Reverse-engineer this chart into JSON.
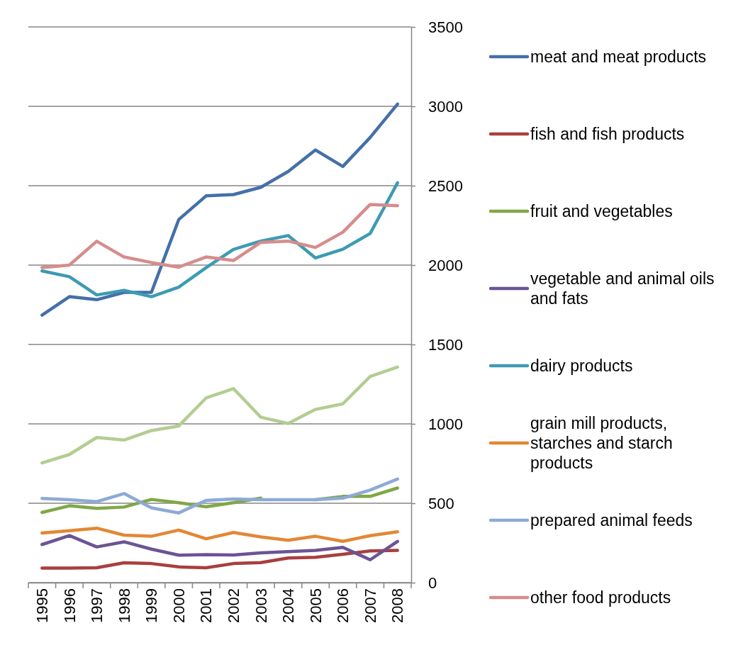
{
  "chart_data": {
    "type": "line",
    "categories": [
      "1995",
      "1996",
      "1997",
      "1998",
      "1999",
      "2000",
      "2001",
      "2002",
      "2003",
      "2004",
      "2005",
      "2006",
      "2007",
      "2008"
    ],
    "series": [
      {
        "name": "meat and meat products",
        "color": "#4470a8",
        "values": [
          1685,
          1801,
          1782,
          1828,
          1828,
          2287,
          2436,
          2444,
          2490,
          2589,
          2725,
          2621,
          2804,
          3014
        ]
      },
      {
        "name": "fish and fish products",
        "color": "#a83f3f",
        "values": [
          91,
          91,
          94,
          125,
          120,
          99,
          94,
          120,
          126,
          155,
          160,
          179,
          200,
          203
        ]
      },
      {
        "name": "fruit and vegetables",
        "color": "#80a846",
        "values": [
          442,
          484,
          468,
          476,
          524,
          503,
          478,
          503,
          532,
          null,
          522,
          543,
          543,
          596
        ]
      },
      {
        "name": "vegetable and animal oils and fats",
        "color": "#6b5494",
        "values": [
          240,
          296,
          225,
          257,
          211,
          173,
          176,
          174,
          187,
          195,
          203,
          222,
          144,
          260
        ]
      },
      {
        "name": "dairy products",
        "color": "#3d9bb2",
        "values": [
          1963,
          1927,
          1812,
          1841,
          1801,
          1861,
          1984,
          2099,
          2151,
          2186,
          2045,
          2100,
          2199,
          2518
        ]
      },
      {
        "name": "grain mill products, starches and starch products",
        "color": "#e38735",
        "values": [
          312,
          327,
          343,
          299,
          292,
          331,
          276,
          316,
          288,
          267,
          292,
          260,
          296,
          320
        ]
      },
      {
        "name": "prepared animal feeds",
        "color": "#8eaad6",
        "values": [
          530,
          522,
          510,
          561,
          471,
          439,
          518,
          527,
          522,
          522,
          522,
          532,
          583,
          652
        ]
      },
      {
        "name": "other food products",
        "color": "#d58d8b",
        "values": [
          1984,
          2000,
          2150,
          2051,
          2016,
          1987,
          2051,
          2029,
          2143,
          2151,
          2111,
          2207,
          2382,
          2374
        ]
      },
      {
        "color": "#b3cd92",
        "values": [
          754,
          807,
          914,
          898,
          958,
          987,
          1163,
          1222,
          1042,
          1002,
          1091,
          1126,
          1299,
          1358
        ]
      }
    ],
    "ylim": [
      0,
      3500
    ],
    "yticks": [
      0,
      500,
      1000,
      1500,
      2000,
      2500,
      3000,
      3500
    ],
    "grid": "y",
    "legend": "right",
    "marker": "none",
    "line_style": "solid"
  }
}
